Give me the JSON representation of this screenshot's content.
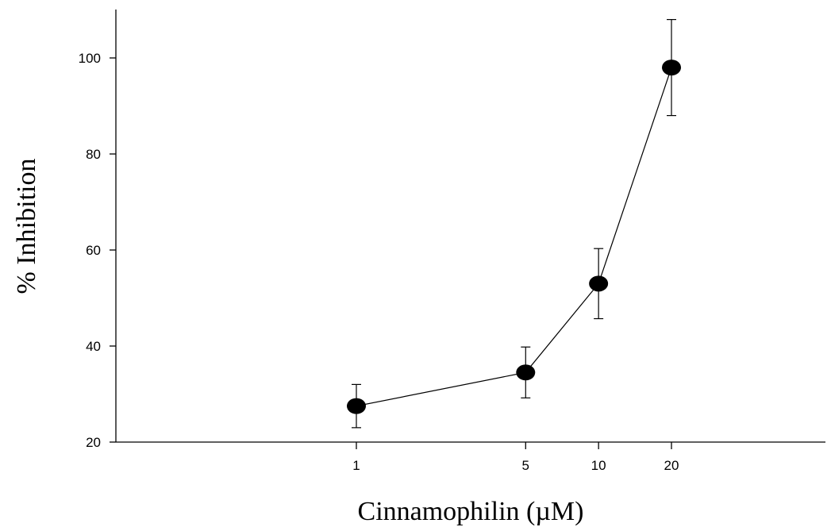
{
  "chart_data": {
    "type": "line",
    "title": "",
    "xlabel": "Cinnamophilin (µM)",
    "ylabel": "% Inhibition",
    "x_scale": "log",
    "x_ticks": [
      1,
      5,
      10,
      20
    ],
    "y_ticks": [
      20,
      40,
      60,
      80,
      100
    ],
    "ylim": [
      20,
      110
    ],
    "grid": false,
    "series": [
      {
        "x": [
          1,
          5,
          10,
          20
        ],
        "y": [
          27.5,
          34.5,
          53,
          98
        ],
        "error": [
          4.5,
          5.3,
          7.3,
          10
        ]
      }
    ]
  }
}
